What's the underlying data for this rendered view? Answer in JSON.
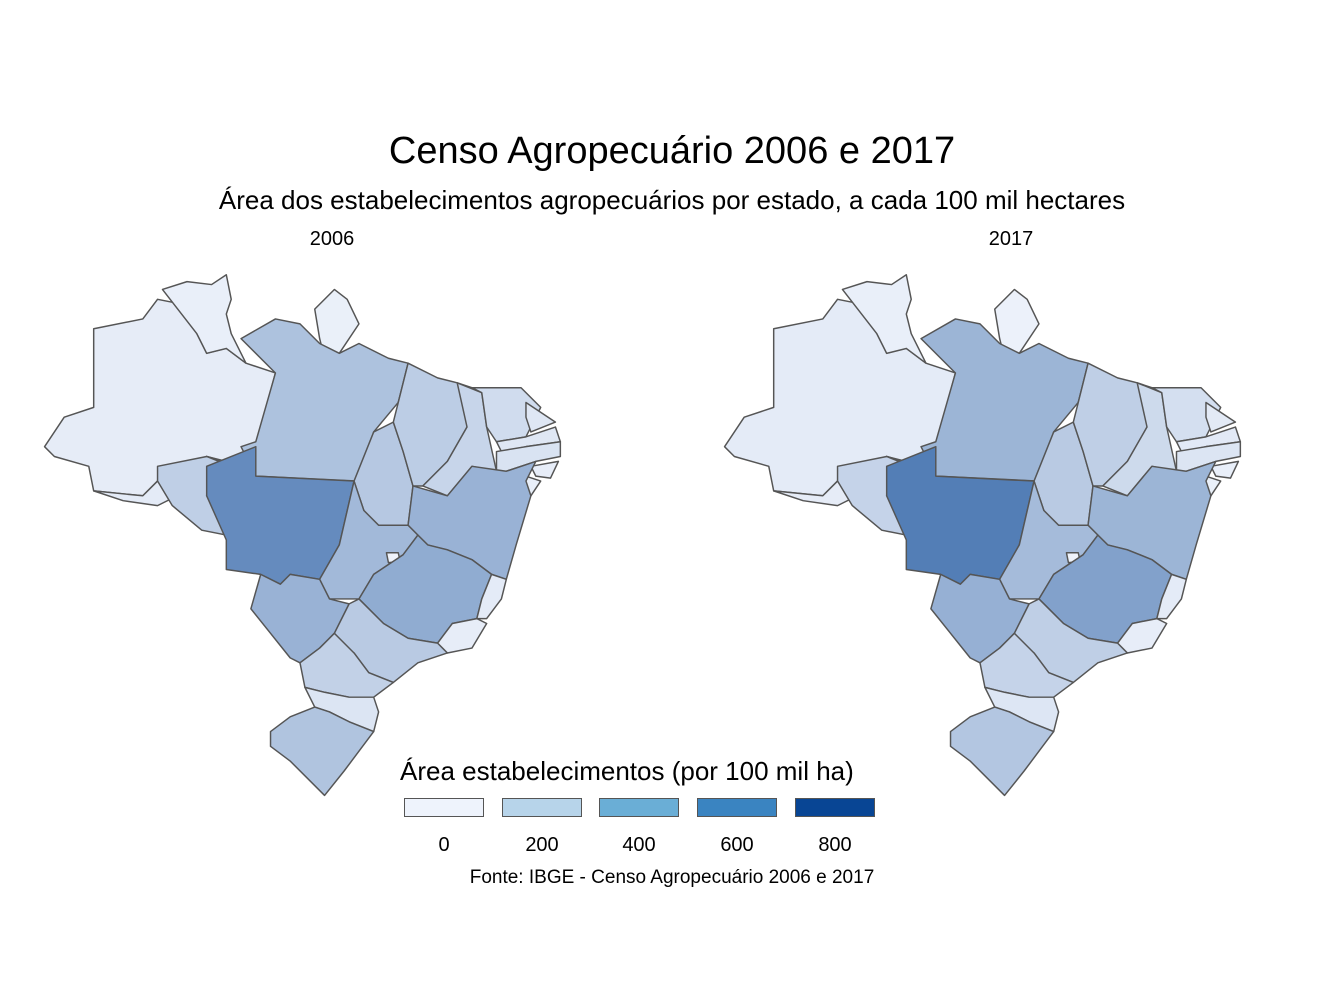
{
  "title": "Censo Agropecuário 2006 e 2017",
  "subtitle": "Área dos estabelecimentos agropecuários por estado, a cada 100 mil hectares",
  "facets": [
    "2006",
    "2017"
  ],
  "legend": {
    "title": "Área estabelecimentos (por 100 mil ha)",
    "breaks": [
      {
        "label": "0",
        "color": "#eef3fc"
      },
      {
        "label": "200",
        "color": "#b7d4ea"
      },
      {
        "label": "400",
        "color": "#6aaed6"
      },
      {
        "label": "600",
        "color": "#3a84c1"
      },
      {
        "label": "800",
        "color": "#084594"
      }
    ]
  },
  "caption": "Fonte: IBGE - Censo Agropecuário 2006 e 2017",
  "map_data": {
    "scale": {
      "min": 0,
      "max": 800,
      "low_color": "#f0f4fc",
      "high_color": "#084594"
    },
    "values_2006": {
      "AM": 35,
      "RR": 25,
      "AP": 20,
      "PA": 230,
      "AC": 40,
      "RO": 170,
      "MT": 480,
      "TO": 200,
      "MA": 180,
      "PI": 140,
      "CE": 110,
      "RN": 60,
      "PB": 60,
      "PE": 80,
      "AL": 30,
      "SE": 25,
      "BA": 300,
      "GO": 270,
      "DF": 5,
      "MS": 300,
      "MG": 330,
      "ES": 40,
      "RJ": 30,
      "SP": 190,
      "PR": 160,
      "SC": 70,
      "RS": 220
    },
    "values_2017": {
      "AM": 40,
      "RR": 25,
      "AP": 15,
      "PA": 290,
      "AC": 35,
      "RO": 150,
      "MT": 540,
      "TO": 190,
      "MA": 170,
      "PI": 120,
      "CE": 95,
      "RN": 45,
      "PB": 50,
      "PE": 70,
      "AL": 25,
      "SE": 20,
      "BA": 290,
      "GO": 260,
      "DF": 5,
      "MS": 310,
      "MG": 380,
      "ES": 40,
      "RJ": 30,
      "SP": 170,
      "PR": 150,
      "SC": 65,
      "RS": 210
    }
  }
}
